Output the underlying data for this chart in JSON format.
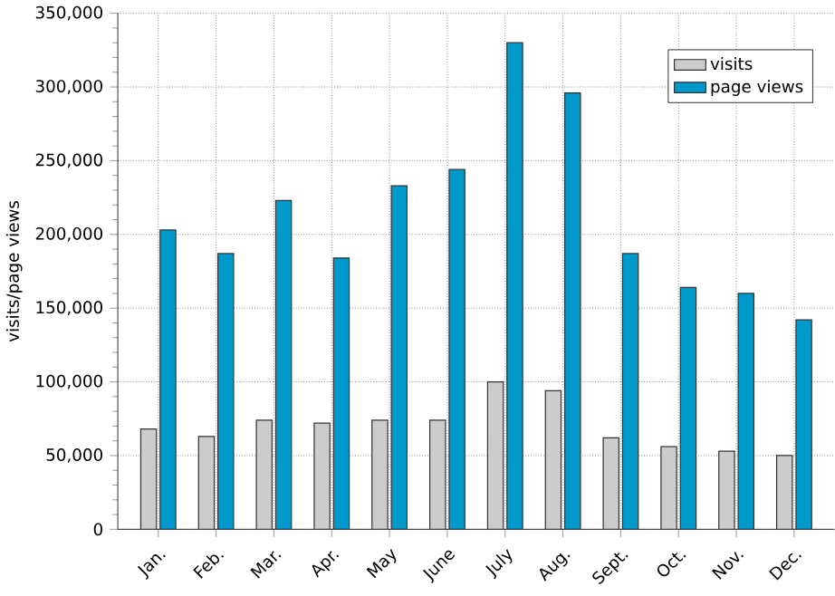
{
  "chart_data": {
    "type": "bar",
    "ylabel": "visits/page views",
    "categories": [
      "Jan.",
      "Feb.",
      "Mar.",
      "Apr.",
      "May",
      "June",
      "July",
      "Aug.",
      "Sept.",
      "Oct.",
      "Nov.",
      "Dec."
    ],
    "series": [
      {
        "name": "visits",
        "color": "#cccccc",
        "values": [
          68000,
          63000,
          74000,
          72000,
          74000,
          74000,
          100000,
          94000,
          62000,
          56000,
          53000,
          50000
        ]
      },
      {
        "name": "page views",
        "color": "#0099cc",
        "values": [
          203000,
          187000,
          223000,
          184000,
          233000,
          244000,
          330000,
          296000,
          187000,
          164000,
          160000,
          142000
        ]
      }
    ],
    "ylim": [
      0,
      350000
    ],
    "yticks": [
      0,
      {
        "value": 50000,
        "label": "50,000"
      },
      {
        "value": 100000,
        "label": "100,000"
      },
      {
        "value": 150000,
        "label": "150,000"
      },
      {
        "value": 200000,
        "label": "200,000"
      },
      {
        "value": 250000,
        "label": "250,000"
      },
      {
        "value": 300000,
        "label": "300,000"
      },
      {
        "value": 350000,
        "label": "350,000"
      }
    ],
    "grid": true,
    "legend": "top right"
  }
}
